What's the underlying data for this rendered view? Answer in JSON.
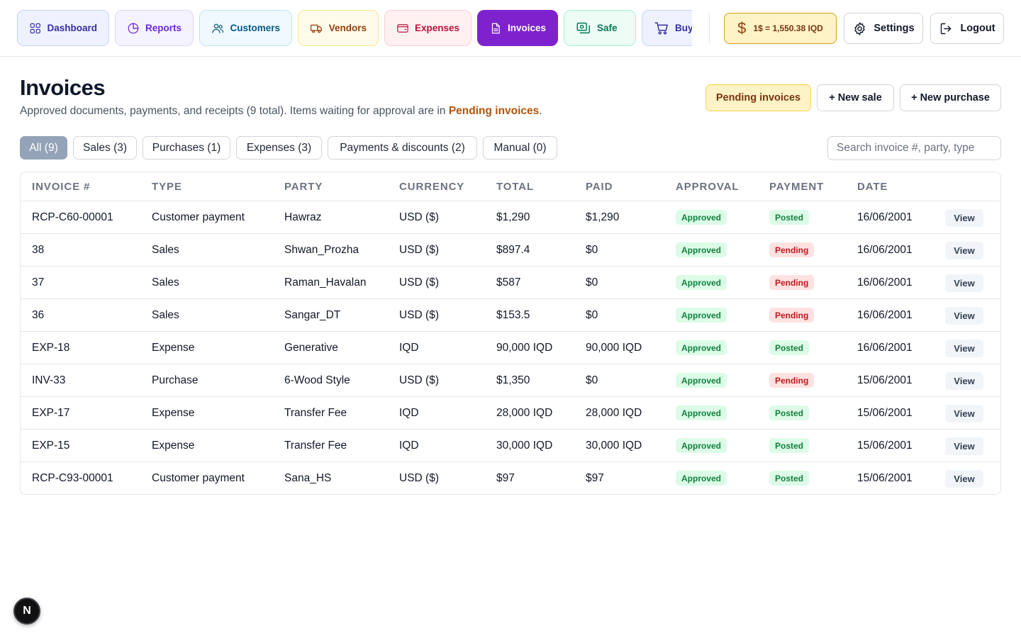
{
  "nav": {
    "tabs": [
      {
        "label": "Dashboard",
        "icon": "grid-icon"
      },
      {
        "label": "Reports",
        "icon": "pie-chart-icon"
      },
      {
        "label": "Customers",
        "icon": "users-icon"
      },
      {
        "label": "Vendors",
        "icon": "truck-icon"
      },
      {
        "label": "Expenses",
        "icon": "wallet-icon"
      },
      {
        "label": "Invoices",
        "icon": "document-icon"
      },
      {
        "label": "Safe",
        "icon": "cash-icon"
      },
      {
        "label": "Buy",
        "icon": "cart-icon"
      }
    ],
    "active_tab": "Invoices",
    "rate_label": "1$ = 1,550.38 IQD",
    "settings_label": "Settings",
    "logout_label": "Logout"
  },
  "page": {
    "title": "Invoices",
    "subtitle_prefix": "Approved documents, payments, and receipts (9 total). Items waiting for approval are in ",
    "subtitle_link": "Pending invoices",
    "subtitle_suffix": ".",
    "actions": {
      "pending": "Pending invoices",
      "new_sale": "+ New sale",
      "new_purchase": "+ New purchase"
    }
  },
  "filters": [
    {
      "label": "All (9)",
      "active": true
    },
    {
      "label": "Sales (3)",
      "active": false
    },
    {
      "label": "Purchases (1)",
      "active": false
    },
    {
      "label": "Expenses (3)",
      "active": false
    },
    {
      "label": "Payments & discounts (2)",
      "active": false
    },
    {
      "label": "Manual (0)",
      "active": false
    }
  ],
  "search": {
    "placeholder": "Search invoice #, party, type",
    "value": ""
  },
  "table": {
    "columns": [
      "Invoice #",
      "Type",
      "Party",
      "Currency",
      "Total",
      "Paid",
      "Approval",
      "Payment",
      "Date"
    ],
    "view_label": "View",
    "rows": [
      {
        "invoice": "RCP-C60-00001",
        "type": "Customer payment",
        "party": "Hawraz",
        "currency": "USD ($)",
        "total": "$1,290",
        "paid": "$1,290",
        "approval": "Approved",
        "payment": "Posted",
        "date": "16/06/2001"
      },
      {
        "invoice": "38",
        "type": "Sales",
        "party": "Shwan_Prozha",
        "currency": "USD ($)",
        "total": "$897.4",
        "paid": "$0",
        "approval": "Approved",
        "payment": "Pending",
        "date": "16/06/2001"
      },
      {
        "invoice": "37",
        "type": "Sales",
        "party": "Raman_Havalan",
        "currency": "USD ($)",
        "total": "$587",
        "paid": "$0",
        "approval": "Approved",
        "payment": "Pending",
        "date": "16/06/2001"
      },
      {
        "invoice": "36",
        "type": "Sales",
        "party": "Sangar_DT",
        "currency": "USD ($)",
        "total": "$153.5",
        "paid": "$0",
        "approval": "Approved",
        "payment": "Pending",
        "date": "16/06/2001"
      },
      {
        "invoice": "EXP-18",
        "type": "Expense",
        "party": "Generative",
        "currency": "IQD",
        "total": "90,000 IQD",
        "paid": "90,000 IQD",
        "approval": "Approved",
        "payment": "Posted",
        "date": "16/06/2001"
      },
      {
        "invoice": "INV-33",
        "type": "Purchase",
        "party": "6-Wood Style",
        "currency": "USD ($)",
        "total": "$1,350",
        "paid": "$0",
        "approval": "Approved",
        "payment": "Pending",
        "date": "15/06/2001"
      },
      {
        "invoice": "EXP-17",
        "type": "Expense",
        "party": "Transfer Fee",
        "currency": "IQD",
        "total": "28,000 IQD",
        "paid": "28,000 IQD",
        "approval": "Approved",
        "payment": "Posted",
        "date": "15/06/2001"
      },
      {
        "invoice": "EXP-15",
        "type": "Expense",
        "party": "Transfer Fee",
        "currency": "IQD",
        "total": "30,000 IQD",
        "paid": "30,000 IQD",
        "approval": "Approved",
        "payment": "Posted",
        "date": "15/06/2001"
      },
      {
        "invoice": "RCP-C93-00001",
        "type": "Customer payment",
        "party": "Sana_HS",
        "currency": "USD ($)",
        "total": "$97",
        "paid": "$97",
        "approval": "Approved",
        "payment": "Posted",
        "date": "15/06/2001"
      }
    ]
  },
  "dev_badge": "N",
  "colors": {
    "accent": "#7e22ce",
    "status_green": "#15803d",
    "status_red": "#b91c1c",
    "pending_link": "#b45309"
  }
}
